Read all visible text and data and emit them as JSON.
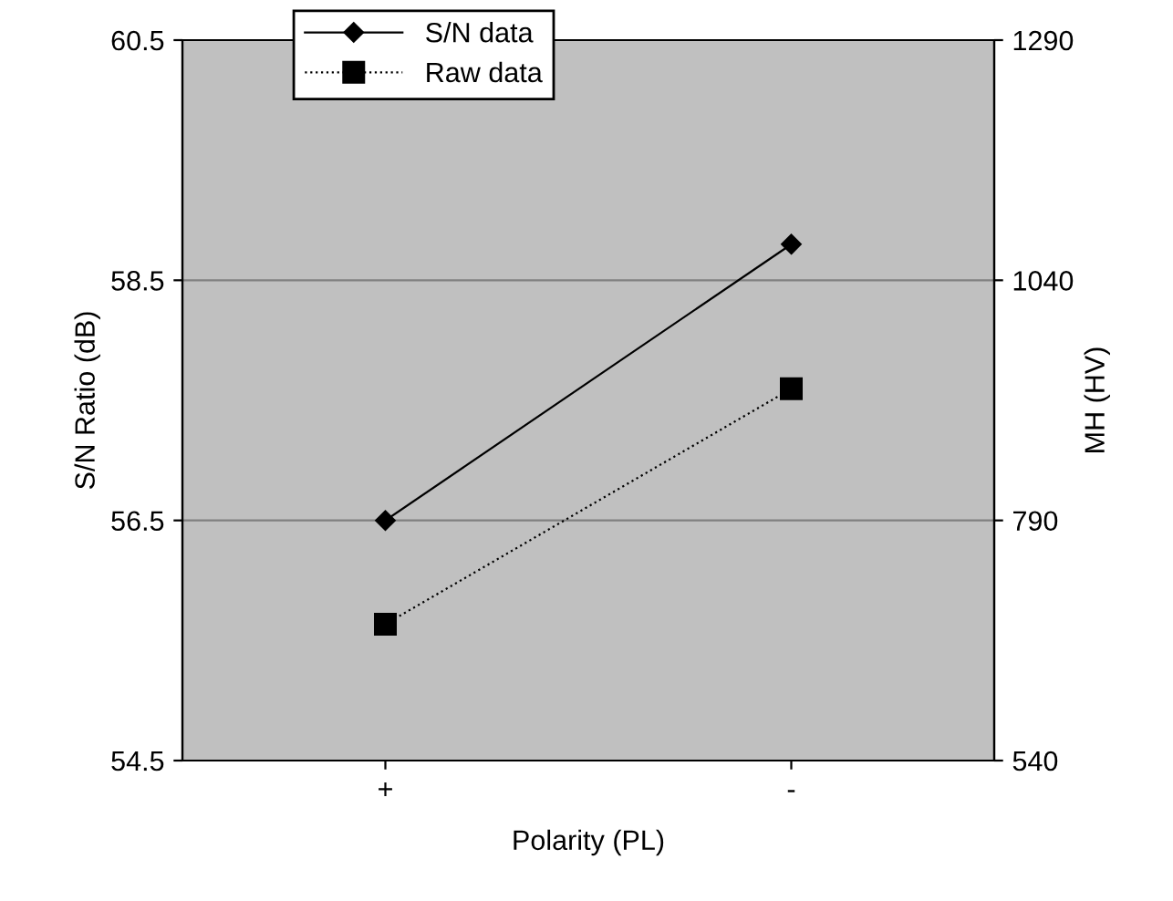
{
  "chart_data": {
    "type": "line",
    "xlabel": "Polarity (PL)",
    "ylabel": "S/N Ratio (dB)",
    "y2label": "MH (HV)",
    "categories": [
      "+",
      "-"
    ],
    "series": [
      {
        "name": "S/N data",
        "color": "#000000",
        "values": [
          56.5,
          58.8
        ],
        "marker": "diamond",
        "line_style": "solid"
      },
      {
        "name": "Raw data",
        "color": "#000000",
        "values": [
          682,
          927
        ],
        "marker": "square",
        "line_style": "dotted",
        "axis": "y2"
      }
    ],
    "ylim": [
      54.5,
      60.5
    ],
    "yticks": [
      54.5,
      56.5,
      58.5,
      60.5
    ],
    "y2lim": [
      540,
      1290
    ],
    "y2ticks": [
      540,
      790,
      1040,
      1290
    ],
    "grid": "y",
    "legend": "top left"
  }
}
